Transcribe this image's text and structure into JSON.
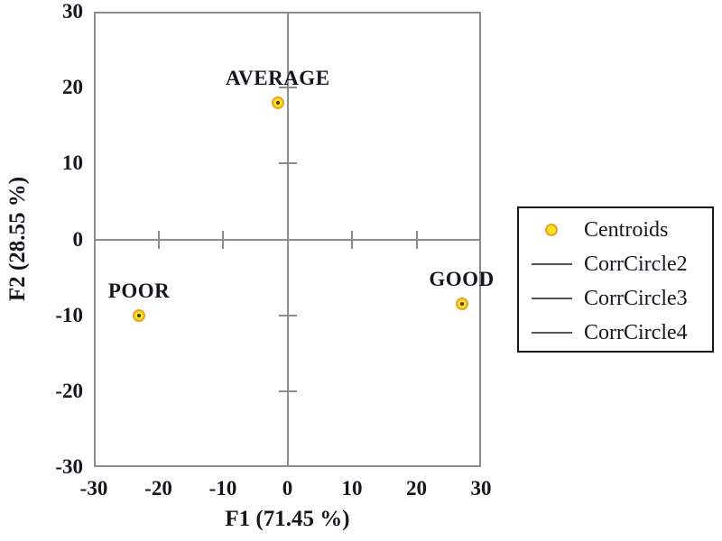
{
  "chart_data": {
    "type": "scatter",
    "title": "",
    "xlabel": "F1 (71.45 %)",
    "ylabel": "F2 (28.55 %)",
    "xlim": [
      -30,
      30
    ],
    "ylim": [
      -30,
      30
    ],
    "x_ticks": [
      -30,
      -20,
      -10,
      0,
      10,
      20,
      30
    ],
    "y_ticks": [
      30,
      20,
      10,
      0,
      -10,
      -20,
      -30
    ],
    "inner_axis_ticks": [
      -20,
      -10,
      10,
      20
    ],
    "grid": false,
    "series": [
      {
        "name": "Centroids",
        "marker": "circle",
        "points": [
          {
            "label": "AVERAGE",
            "x": -1.5,
            "y": 18
          },
          {
            "label": "POOR",
            "x": -23,
            "y": -10
          },
          {
            "label": "GOOD",
            "x": 27,
            "y": -8.5
          }
        ]
      }
    ],
    "legend": {
      "position": "right",
      "items": [
        {
          "marker": "circle",
          "label": "Centroids"
        },
        {
          "marker": "line",
          "label": "CorrCircle2"
        },
        {
          "marker": "line",
          "label": "CorrCircle3"
        },
        {
          "marker": "line",
          "label": "CorrCircle4"
        }
      ]
    },
    "colors": {
      "centroid_fill": "#ffe21f",
      "centroid_stroke": "#e9a126",
      "centroid_core": "#4a3a05",
      "axis_line": "#8c8c8c",
      "text": "#16161f",
      "legend_border": "#1a1a1a",
      "legend_line": "#555555"
    }
  }
}
